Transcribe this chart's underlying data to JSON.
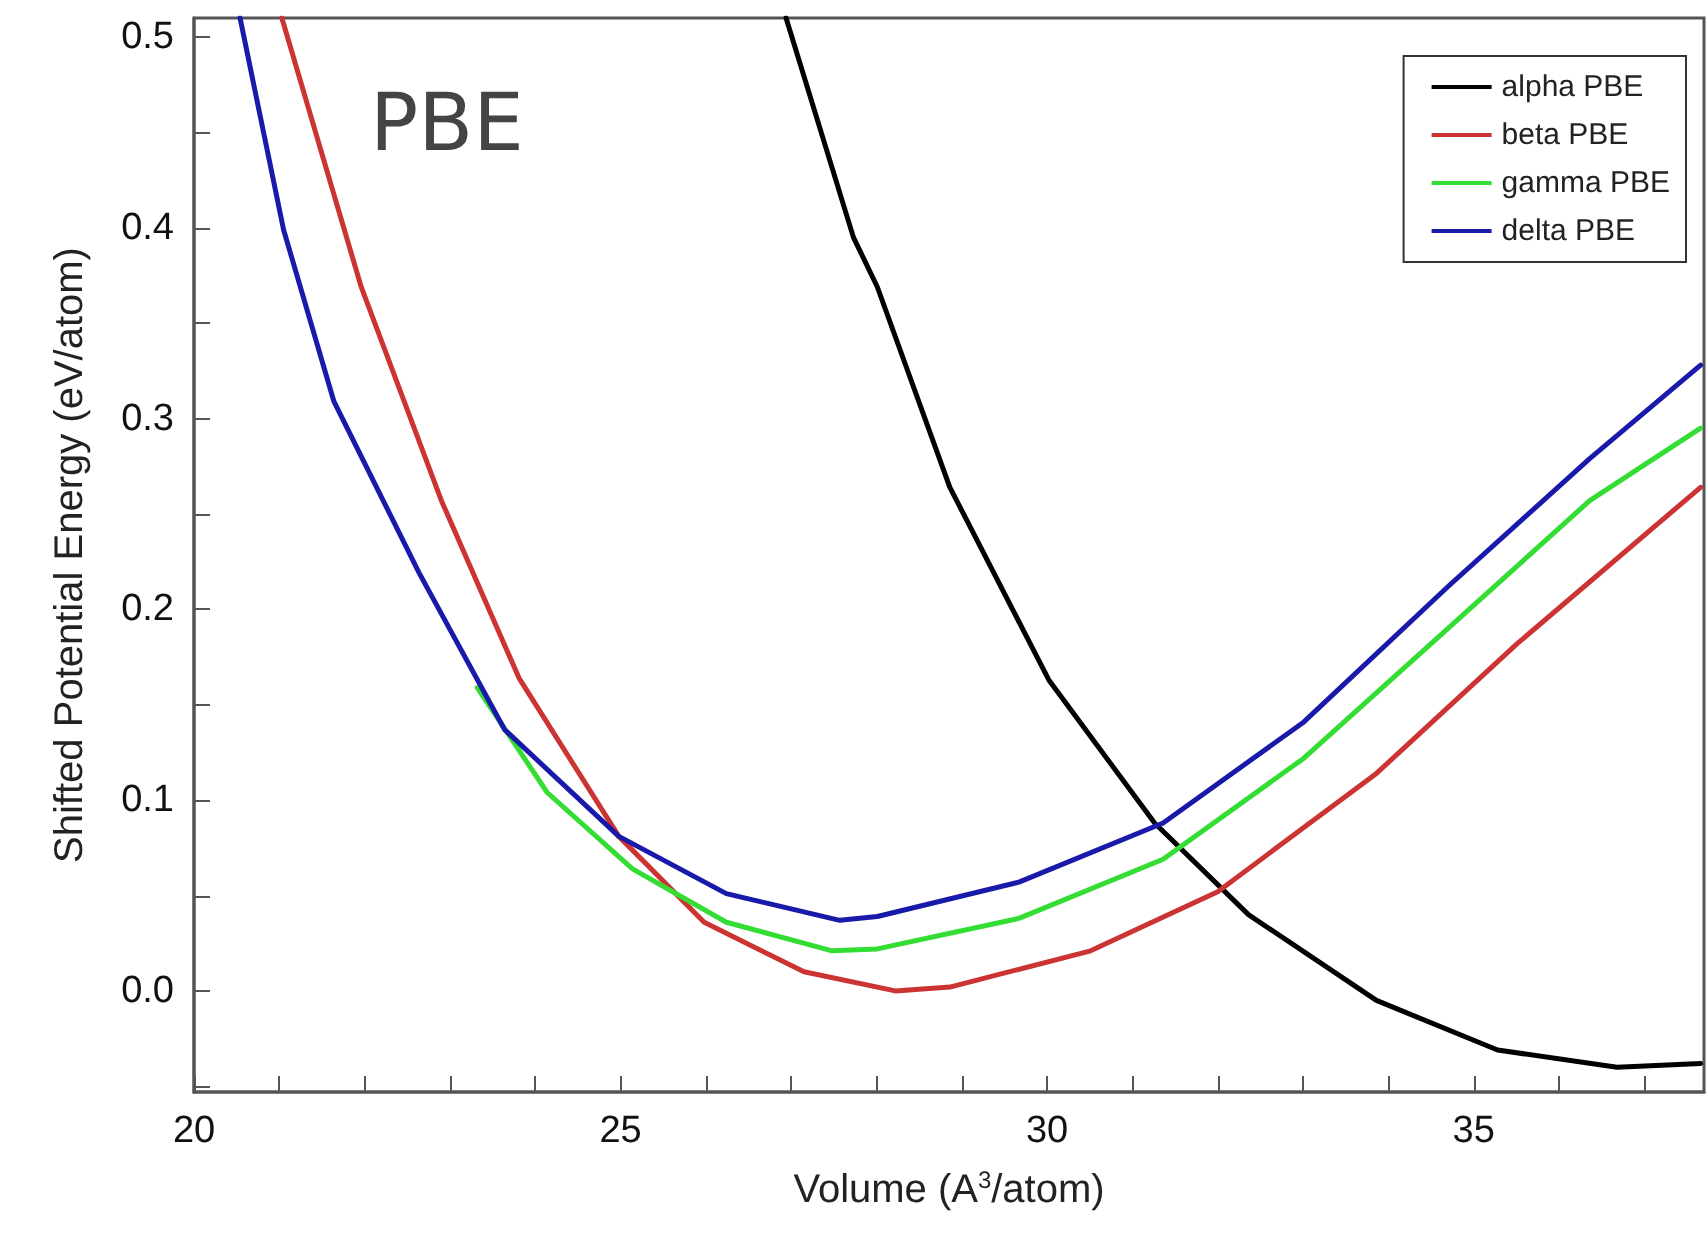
{
  "chart_data": {
    "type": "line",
    "xlabel": "Volume (A$^{3}$/atom)",
    "ylabel": "Shifted Potential Energy (eV/atom)",
    "annotations": [
      "PBE"
    ],
    "xlim": [
      20,
      37.7
    ],
    "ylim": [
      -0.053,
      0.51
    ],
    "xticks": [
      20,
      {
        "value": 21,
        "label": null
      },
      {
        "value": 22,
        "label": null
      },
      {
        "value": 23,
        "label": null
      },
      {
        "value": 24,
        "label": null
      },
      25,
      {
        "value": 26,
        "label": null
      },
      {
        "value": 27,
        "label": null
      },
      {
        "value": 28,
        "label": null
      },
      {
        "value": 29,
        "label": null
      },
      30,
      {
        "value": 31,
        "label": null
      },
      {
        "value": 32,
        "label": null
      },
      {
        "value": 33,
        "label": null
      },
      {
        "value": 34,
        "label": null
      },
      35,
      {
        "value": 36,
        "label": null
      },
      {
        "value": 37,
        "label": null
      }
    ],
    "yticks": [
      {
        "value": -0.05,
        "label": null
      },
      {
        "value": 0,
        "label": "0.0"
      },
      {
        "value": 0.05,
        "label": null
      },
      0.1,
      {
        "value": 0.15,
        "label": null
      },
      0.2,
      {
        "value": 0.25,
        "label": null
      },
      0.3,
      {
        "value": 0.35,
        "label": null
      },
      0.4,
      {
        "value": 0.45,
        "label": null
      },
      0.5
    ],
    "legend": "top right",
    "grid": false,
    "marker": "none",
    "line_style": "solid",
    "series": [
      {
        "name": "alpha PBE",
        "color": "#000000",
        "x": [
          26.94,
          27.73,
          28.01,
          28.86,
          30.02,
          31.26,
          32.36,
          33.86,
          35.28,
          36.68,
          37.66
        ],
        "values": [
          0.51,
          0.395,
          0.369,
          0.264,
          0.163,
          0.088,
          0.04,
          -0.005,
          -0.031,
          -0.04,
          -0.038
        ]
      },
      {
        "name": "beta PBE",
        "color": "#cc3333",
        "x": [
          21.03,
          21.96,
          22.9,
          23.81,
          24.98,
          25.98,
          27.15,
          28.22,
          28.86,
          30.51,
          32.0,
          33.86,
          35.51,
          37.66
        ],
        "values": [
          0.51,
          0.369,
          0.257,
          0.164,
          0.081,
          0.036,
          0.01,
          0.0,
          0.002,
          0.021,
          0.052,
          0.114,
          0.182,
          0.264
        ]
      },
      {
        "name": "gamma PBE",
        "color": "#33dd33",
        "x": [
          23.32,
          24.14,
          25.14,
          26.24,
          27.48,
          28.01,
          29.67,
          31.36,
          33.01,
          34.7,
          36.36,
          37.66
        ],
        "values": [
          0.159,
          0.104,
          0.064,
          0.036,
          0.021,
          0.022,
          0.038,
          0.069,
          0.122,
          0.19,
          0.257,
          0.295
        ]
      },
      {
        "name": "delta PBE",
        "color": "#1a1aaa",
        "x": [
          20.54,
          21.05,
          21.64,
          22.64,
          23.64,
          24.98,
          26.24,
          27.57,
          28.01,
          29.67,
          31.36,
          33.01,
          34.7,
          36.36,
          37.66
        ],
        "values": [
          0.51,
          0.399,
          0.309,
          0.219,
          0.137,
          0.081,
          0.051,
          0.037,
          0.039,
          0.057,
          0.088,
          0.141,
          0.212,
          0.279,
          0.328
        ]
      }
    ]
  }
}
